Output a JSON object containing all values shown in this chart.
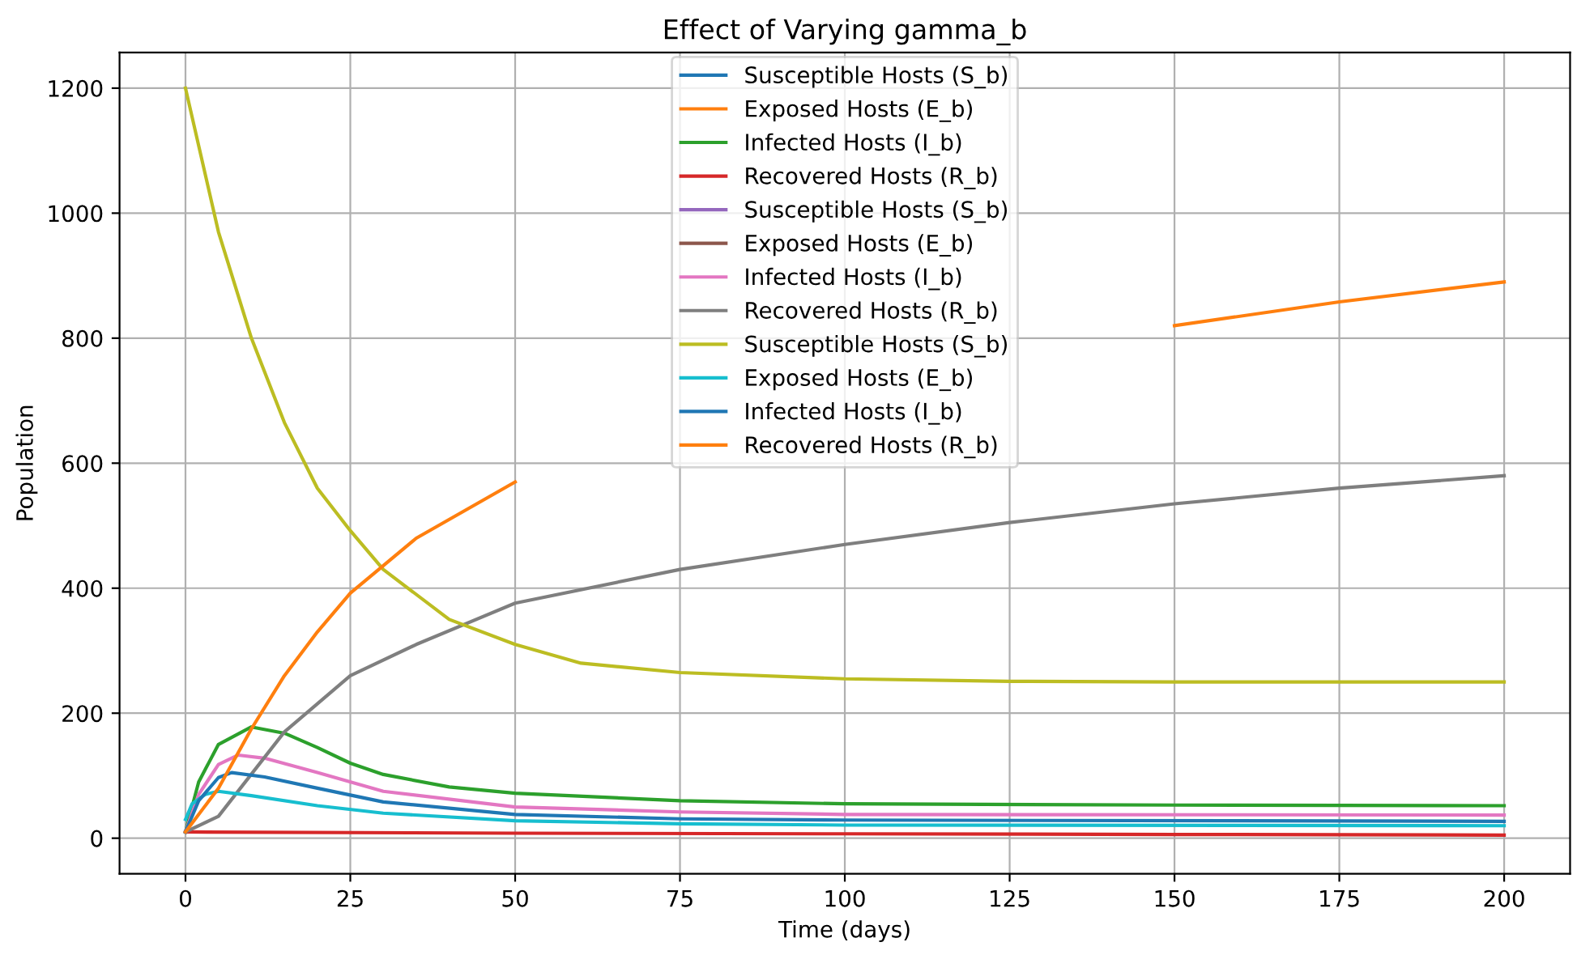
{
  "chart_data": {
    "type": "line",
    "title": "Effect of Varying gamma_b",
    "xlabel": "Time (days)",
    "ylabel": "Population",
    "xlim": [
      -10,
      210
    ],
    "ylim": [
      -57,
      1257
    ],
    "xticks": [
      0,
      25,
      50,
      75,
      100,
      125,
      150,
      175,
      200
    ],
    "yticks": [
      0,
      200,
      400,
      600,
      800,
      1000,
      1200
    ],
    "grid": true,
    "legend": "top",
    "marker": "none",
    "line_style": "solid",
    "series": [
      {
        "name": "Susceptible Hosts (S_b)",
        "color": "#1f77b4"
      },
      {
        "name": "Exposed Hosts (E_b)",
        "color": "#ff7f0e"
      },
      {
        "name": "Infected Hosts (I_b)",
        "color": "#2ca02c",
        "x": [
          0,
          2,
          5,
          10,
          15,
          20,
          25,
          30,
          40,
          50,
          75,
          100,
          150,
          200
        ],
        "values": [
          10,
          90,
          150,
          178,
          168,
          145,
          120,
          102,
          82,
          72,
          60,
          55,
          53,
          52
        ]
      },
      {
        "name": "Recovered Hosts (R_b)",
        "color": "#d62728",
        "x": [
          0,
          50,
          100,
          150,
          200
        ],
        "values": [
          10,
          8,
          7,
          6,
          5
        ]
      },
      {
        "name": "Susceptible Hosts (S_b)",
        "color": "#9467bd"
      },
      {
        "name": "Exposed Hosts (E_b)",
        "color": "#8c564b"
      },
      {
        "name": "Infected Hosts (I_b)",
        "color": "#e377c2",
        "x": [
          0,
          2,
          5,
          8,
          12,
          20,
          30,
          50,
          75,
          100,
          200
        ],
        "values": [
          10,
          70,
          118,
          133,
          128,
          105,
          75,
          50,
          42,
          38,
          37
        ]
      },
      {
        "name": "Recovered Hosts (R_b)",
        "color": "#7f7f7f",
        "x": [
          0,
          5,
          15,
          25,
          35,
          50,
          75,
          100,
          125,
          150,
          175,
          200
        ],
        "values": [
          10,
          35,
          170,
          260,
          310,
          376,
          430,
          470,
          505,
          535,
          560,
          580
        ]
      },
      {
        "name": "Susceptible Hosts (S_b)",
        "color": "#bcbd22",
        "x": [
          0,
          5,
          10,
          15,
          20,
          25,
          30,
          40,
          50,
          60,
          75,
          100,
          125,
          150,
          200
        ],
        "values": [
          1200,
          970,
          800,
          665,
          560,
          492,
          430,
          350,
          310,
          280,
          265,
          255,
          251,
          250,
          250
        ]
      },
      {
        "name": "Exposed Hosts (E_b)",
        "color": "#17becf",
        "x": [
          0,
          1,
          3,
          5,
          10,
          20,
          30,
          50,
          75,
          100,
          200
        ],
        "values": [
          30,
          55,
          70,
          75,
          68,
          52,
          40,
          28,
          23,
          21,
          20
        ]
      },
      {
        "name": "Infected Hosts (I_b)",
        "color": "#1f77b4",
        "x": [
          0,
          2,
          5,
          7,
          12,
          20,
          30,
          50,
          75,
          100,
          200
        ],
        "values": [
          10,
          60,
          97,
          105,
          98,
          80,
          58,
          38,
          31,
          29,
          27
        ]
      },
      {
        "name": "Recovered Hosts (R_b)",
        "color": "#ff7f0e",
        "x": [
          0,
          5,
          10,
          15,
          20,
          25,
          35,
          50,
          75,
          100,
          125,
          150,
          175,
          200
        ],
        "values": [
          10,
          80,
          175,
          260,
          330,
          392,
          480,
          570,
          null,
          null,
          null,
          820,
          858,
          890
        ]
      }
    ]
  }
}
